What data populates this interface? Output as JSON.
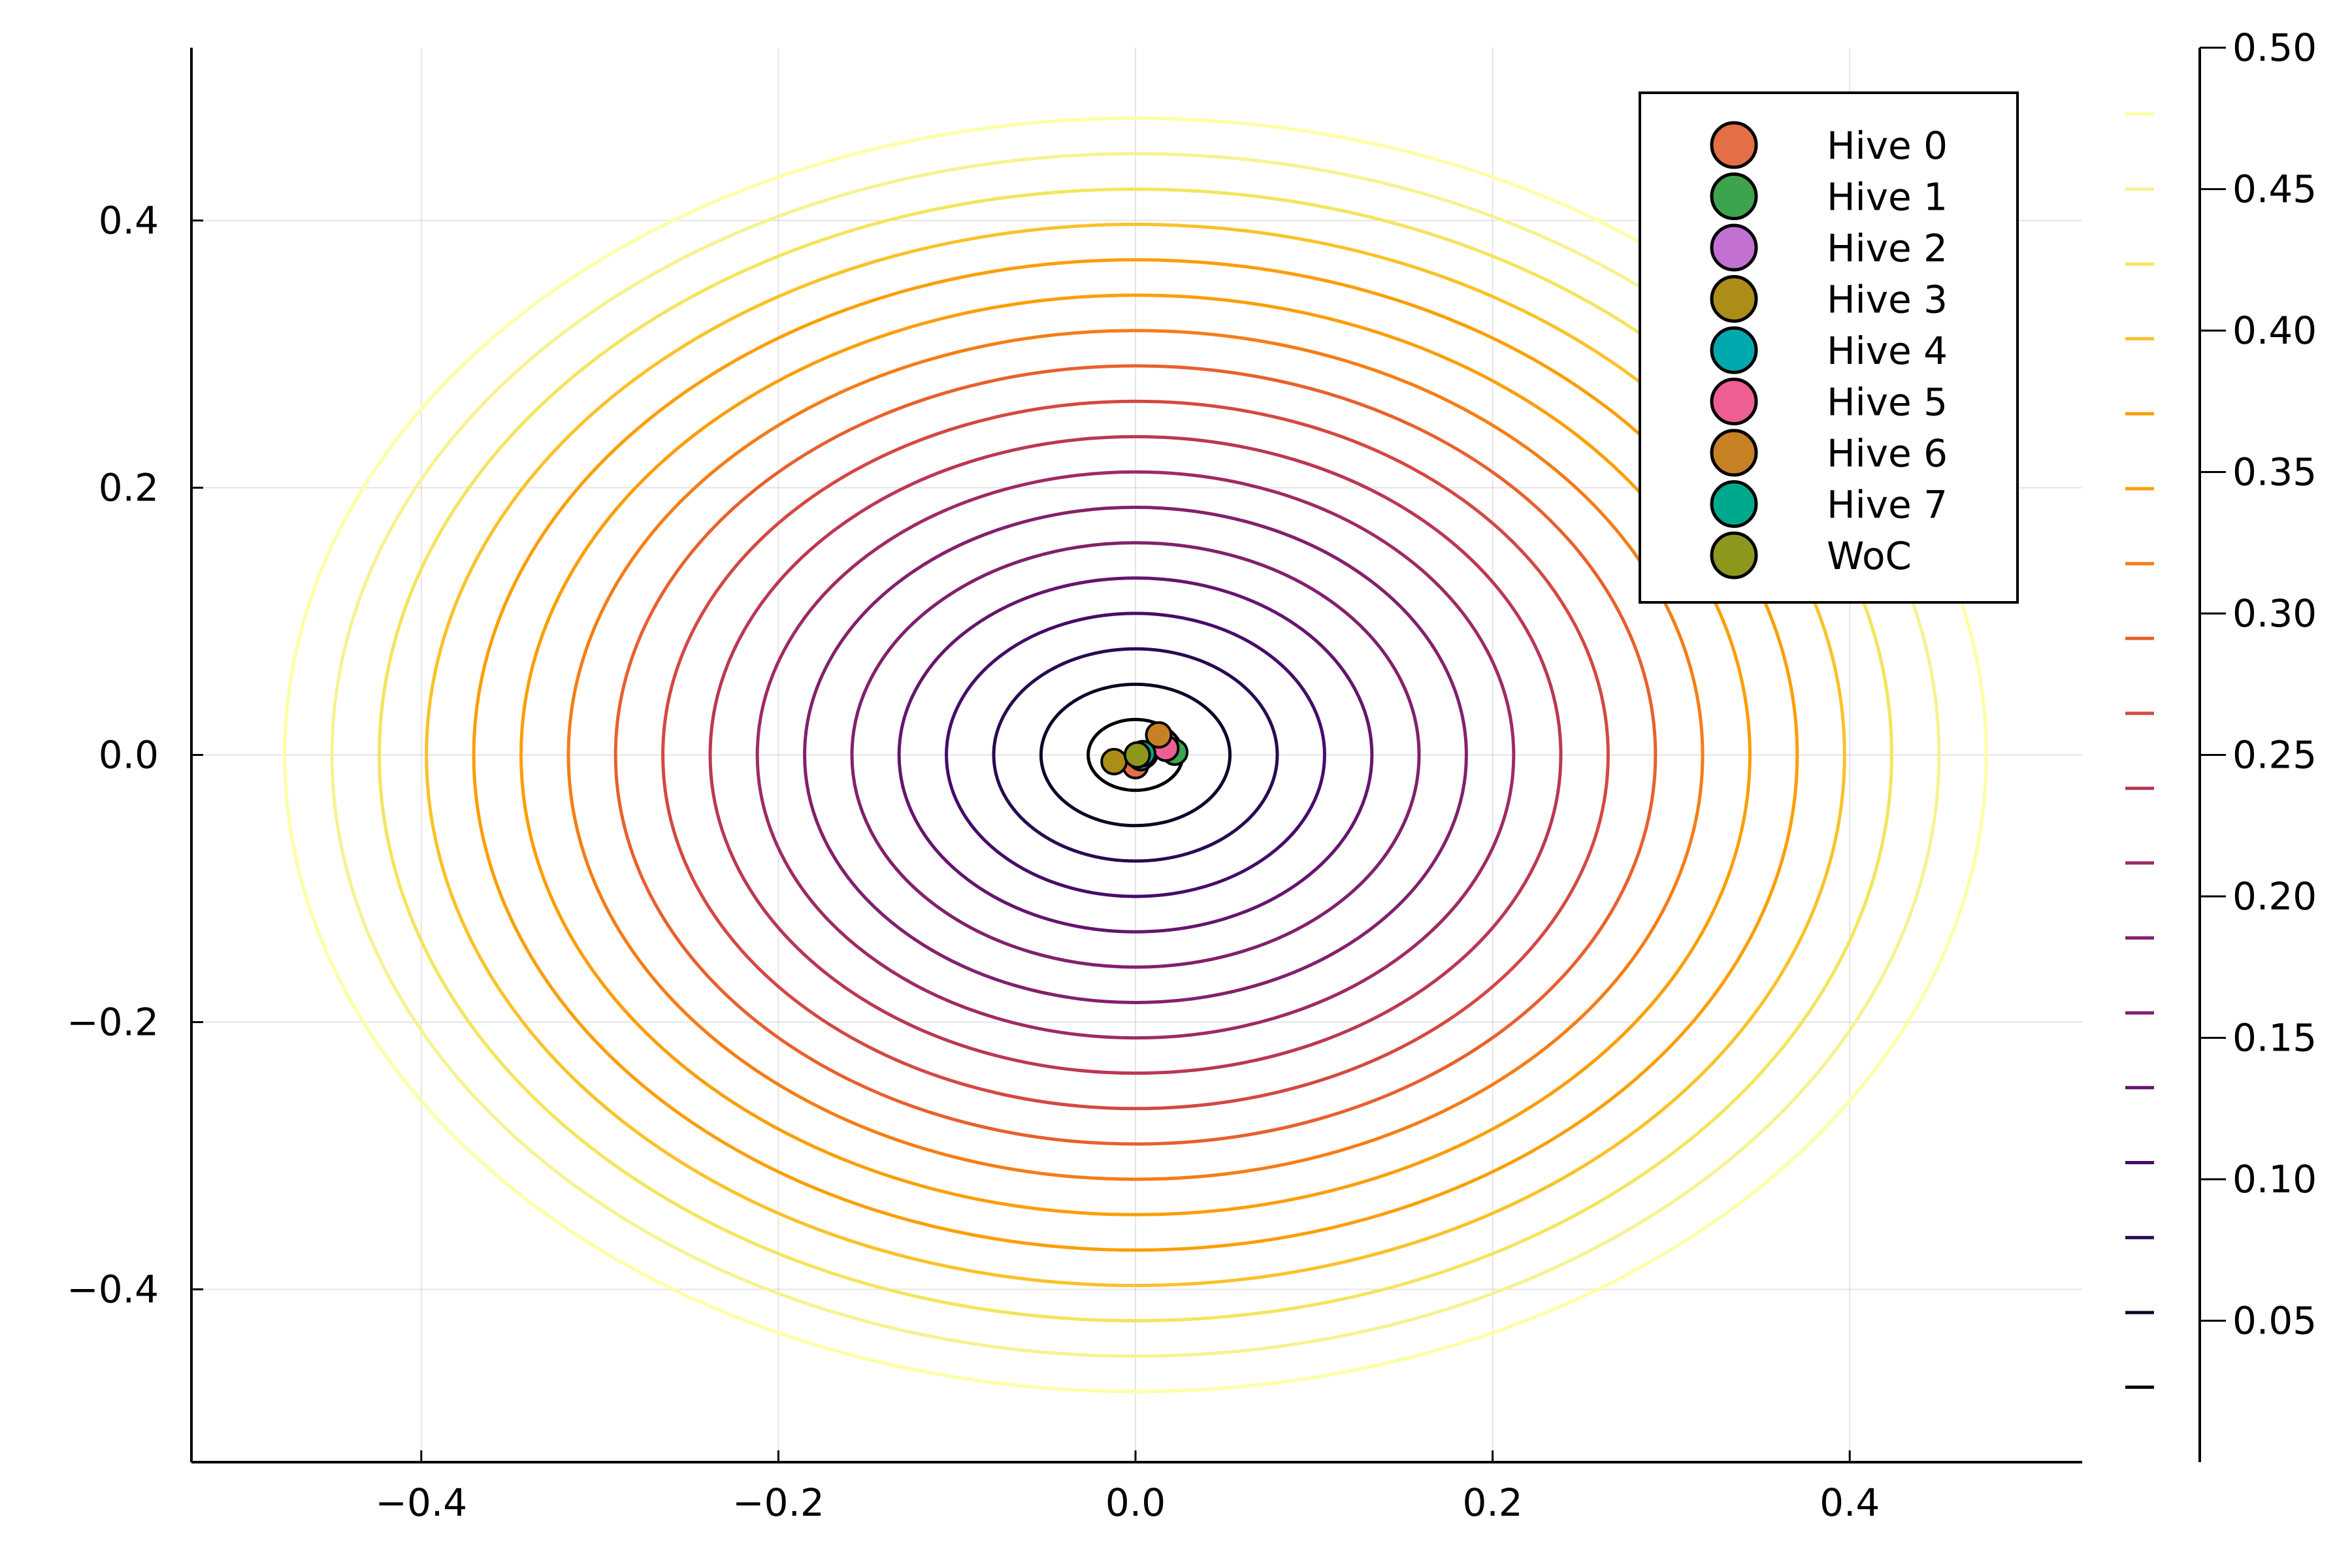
{
  "chart_data": {
    "type": "contour",
    "title": "",
    "xlabel": "",
    "ylabel": "",
    "xlim": [
      -0.53,
      0.53
    ],
    "ylim": [
      -0.53,
      0.53
    ],
    "x_ticks": [
      -0.4,
      -0.2,
      0.0,
      0.2,
      0.4
    ],
    "x_tick_labels": [
      "−0.4",
      "−0.2",
      "0.0",
      "0.2",
      "0.4"
    ],
    "y_ticks": [
      -0.4,
      -0.2,
      0.0,
      0.2,
      0.4
    ],
    "y_tick_labels": [
      "−0.4",
      "−0.2",
      "0.0",
      "0.2",
      "0.4"
    ],
    "grid": true,
    "contour": {
      "function": "sqrt(x^2 + y^2)",
      "domain": [
        -0.5,
        0.5
      ],
      "levels": [
        0.0265,
        0.0529,
        0.0794,
        0.1059,
        0.1324,
        0.1588,
        0.1853,
        0.2118,
        0.2382,
        0.2647,
        0.2912,
        0.3176,
        0.3441,
        0.3706,
        0.3971,
        0.4235,
        0.45,
        0.4765
      ],
      "colors": [
        "#000004",
        "#0d0829",
        "#280b53",
        "#470b6a",
        "#65156e",
        "#82206c",
        "#9f2a63",
        "#bb3754",
        "#d44842",
        "#e8602d",
        "#f57d15",
        "#fc9e07",
        "#fac228",
        "#f3e55d",
        "#f6f291",
        "#fcffa4"
      ]
    },
    "colorbar": {
      "ticks": [
        0.05,
        0.1,
        0.15,
        0.2,
        0.25,
        0.3,
        0.35,
        0.4,
        0.45,
        0.5
      ],
      "tick_labels": [
        "0.05",
        "0.10",
        "0.15",
        "0.20",
        "0.25",
        "0.30",
        "0.35",
        "0.40",
        "0.45",
        "0.50"
      ],
      "range": [
        0.0,
        0.5
      ]
    },
    "legend_position": "top-right",
    "series": [
      {
        "name": "Hive 0",
        "color": "#e26f46",
        "x": [
          0.0
        ],
        "y": [
          -0.008
        ]
      },
      {
        "name": "Hive 1",
        "color": "#3da44d",
        "x": [
          0.022
        ],
        "y": [
          0.002
        ]
      },
      {
        "name": "Hive 2",
        "color": "#c271d2",
        "x": [
          0.005
        ],
        "y": [
          0.0
        ]
      },
      {
        "name": "Hive 3",
        "color": "#ac8d18",
        "x": [
          -0.012
        ],
        "y": [
          -0.005
        ]
      },
      {
        "name": "Hive 4",
        "color": "#00a9ad",
        "x": [
          0.003
        ],
        "y": [
          -0.002
        ]
      },
      {
        "name": "Hive 5",
        "color": "#ed5e93",
        "x": [
          0.017
        ],
        "y": [
          0.005
        ]
      },
      {
        "name": "Hive 6",
        "color": "#c68125",
        "x": [
          0.013
        ],
        "y": [
          0.015
        ]
      },
      {
        "name": "Hive 7",
        "color": "#00a98d",
        "x": [
          0.004
        ],
        "y": [
          0.001
        ]
      },
      {
        "name": "WoC",
        "color": "#8e971d",
        "x": [
          0.001
        ],
        "y": [
          0.0
        ]
      }
    ]
  }
}
